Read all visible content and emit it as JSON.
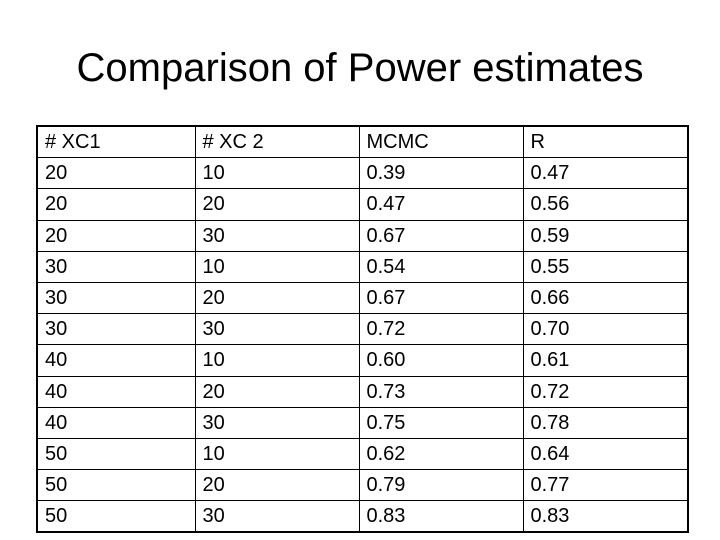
{
  "title": "Comparison of Power estimates",
  "table": {
    "header": [
      "# XC1",
      "# XC 2",
      "MCMC",
      "R"
    ],
    "rows": [
      [
        "20",
        "10",
        "0.39",
        "0.47"
      ],
      [
        "20",
        "20",
        "0.47",
        "0.56"
      ],
      [
        "20",
        "30",
        "0.67",
        "0.59"
      ],
      [
        "30",
        "10",
        "0.54",
        "0.55"
      ],
      [
        "30",
        "20",
        "0.67",
        "0.66"
      ],
      [
        "30",
        "30",
        "0.72",
        "0.70"
      ],
      [
        "40",
        "10",
        "0.60",
        "0.61"
      ],
      [
        "40",
        "20",
        "0.73",
        "0.72"
      ],
      [
        "40",
        "30",
        "0.75",
        "0.78"
      ],
      [
        "50",
        "10",
        "0.62",
        "0.64"
      ],
      [
        "50",
        "20",
        "0.79",
        "0.77"
      ],
      [
        "50",
        "30",
        "0.83",
        "0.83"
      ]
    ]
  }
}
